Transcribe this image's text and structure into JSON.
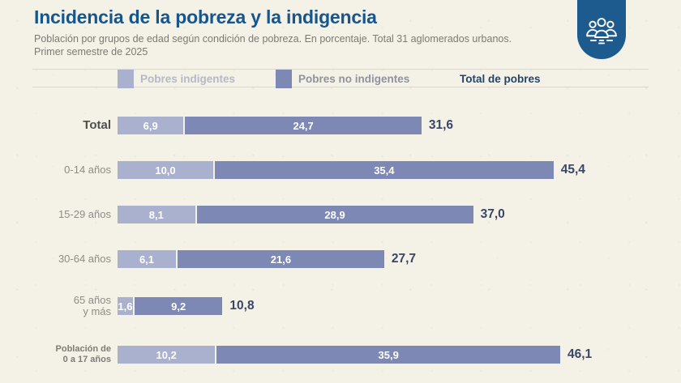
{
  "colors": {
    "background": "#f4f1e7",
    "title": "#17568c",
    "subtitle": "#7b7a74",
    "badge": "#1d5a8e",
    "bar_indigentes": "#a9b1cf",
    "bar_no_indigentes": "#7d89b4",
    "separator_line": "#dcd8cb",
    "legend_indigentes_text": "#b3b9c7",
    "legend_no_indigentes_text": "#8e939e",
    "legend_total_text": "#24456a",
    "total_value_text": "#3a4668"
  },
  "chart_data": {
    "type": "bar",
    "orientation": "horizontal",
    "stacked": true,
    "title": "Incidencia de la pobreza y la indigencia",
    "subtitle": "Población por grupos de edad según condición de pobreza. En porcentaje. Total 31 aglomerados urbanos.",
    "subtitle2": "Primer semestre de 2025",
    "legend_position": "top",
    "grid": false,
    "xlim": [
      0,
      50
    ],
    "value_format": "comma-decimal",
    "categories": [
      "Total",
      "0-14 años",
      "15-29 años",
      "30-64 años",
      "65 años y más",
      "Población de 0 a 17 años"
    ],
    "category_label_lines": [
      [
        "Total"
      ],
      [
        "0-14 años"
      ],
      [
        "15-29 años"
      ],
      [
        "30-64 años"
      ],
      [
        "65 años",
        "y más"
      ],
      [
        "Población de",
        "0 a 17 años"
      ]
    ],
    "series": [
      {
        "name": "Pobres indigentes",
        "color": "#a9b1cf",
        "values": [
          6.9,
          10.0,
          8.1,
          6.1,
          1.6,
          10.2
        ]
      },
      {
        "name": "Pobres no indigentes",
        "color": "#7d89b4",
        "values": [
          24.7,
          35.4,
          28.9,
          21.6,
          9.2,
          35.9
        ]
      }
    ],
    "totals": {
      "name": "Total de pobres",
      "values": [
        31.6,
        45.4,
        37.0,
        27.7,
        10.8,
        46.1
      ]
    }
  }
}
